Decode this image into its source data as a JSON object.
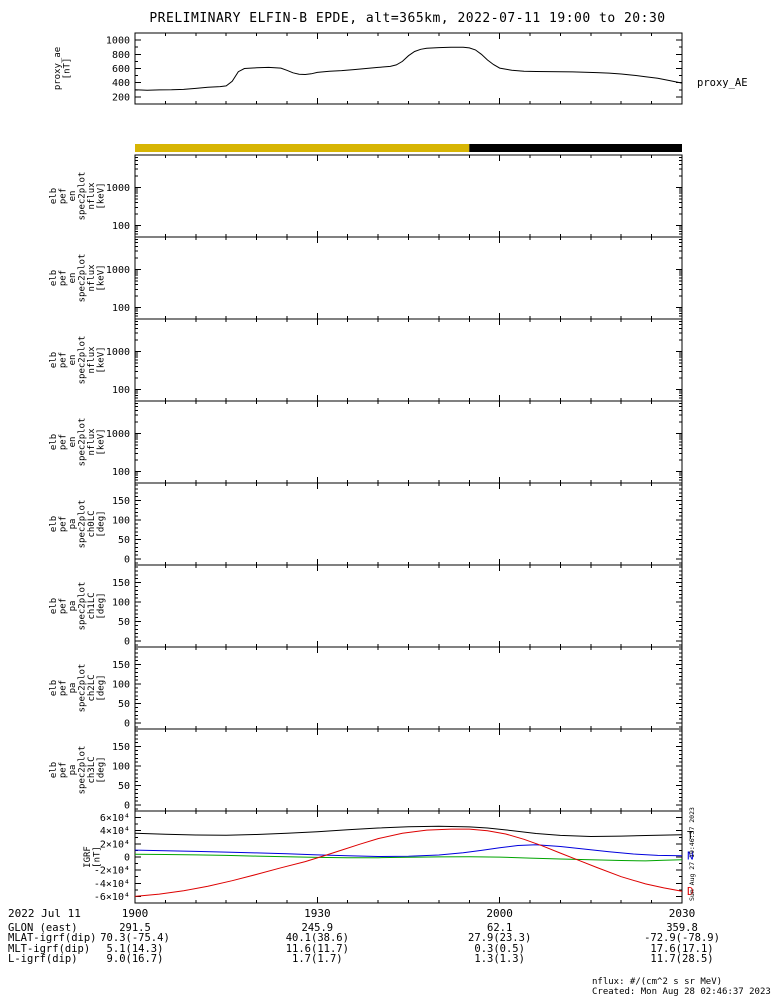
{
  "title": "PRELIMINARY ELFIN-B EPDE, alt=365km, 2022-07-11 19:00 to 20:30",
  "x_axis": {
    "tick_labels": [
      "1900",
      "1930",
      "2000",
      "2030"
    ],
    "tick_minutes": [
      0,
      30,
      60,
      90
    ],
    "minutes_range": [
      0,
      90
    ]
  },
  "footer": {
    "date_label": "2022 Jul 11",
    "rows": [
      {
        "label": "GLON (east)",
        "values": [
          "291.5",
          "245.9",
          "62.1",
          "359.8"
        ]
      },
      {
        "label": "MLAT-igrf(dip)",
        "values": [
          "70.3(-75.4)",
          "40.1(38.6)",
          "27.9(23.3)",
          "-72.9(-78.9)"
        ]
      },
      {
        "label": "MLT-igrf(dip)",
        "values": [
          "5.1(14.3)",
          "11.6(11.7)",
          "0.3(0.5)",
          "17.6(17.1)"
        ]
      },
      {
        "label": "L-igrf(dip)",
        "values": [
          "9.0(16.7)",
          "1.7(1.7)",
          "1.3(1.3)",
          "11.7(28.5)"
        ]
      }
    ],
    "nflux_note": "nflux: #/(cm^2 s sr MeV)",
    "created_note": "Created: Mon Aug 28 02:46:37 2023",
    "side_timestamp": "Sun Aug 27 19:46:37 2023"
  },
  "chart_data": [
    {
      "id": "proxy_ae",
      "type": "line",
      "yscale": "linear",
      "ylim": [
        100,
        1100
      ],
      "yticks": [
        {
          "v": 200,
          "label": "200"
        },
        {
          "v": 400,
          "label": "400"
        },
        {
          "v": 600,
          "label": "600"
        },
        {
          "v": 800,
          "label": "800"
        },
        {
          "v": 1000,
          "label": "1000"
        }
      ],
      "minor_step": 100,
      "ylabel_lines": [
        "proxy_ae",
        "[nT]"
      ],
      "right_label": "proxy_AE",
      "series": [
        {
          "name": "proxy_AE",
          "color": "#000000",
          "x": [
            0,
            2,
            4,
            6,
            8,
            10,
            12,
            14,
            15,
            16,
            17,
            18,
            20,
            22,
            24,
            25,
            26,
            27,
            28,
            29,
            30,
            32,
            34,
            36,
            38,
            40,
            42,
            43,
            44,
            45,
            46,
            47,
            48,
            50,
            52,
            54,
            55,
            56,
            57,
            58,
            59,
            60,
            62,
            64,
            66,
            68,
            70,
            72,
            74,
            76,
            78,
            80,
            82,
            84,
            86,
            88,
            90
          ],
          "y": [
            300,
            295,
            298,
            300,
            305,
            320,
            335,
            345,
            355,
            420,
            555,
            600,
            610,
            615,
            605,
            575,
            540,
            520,
            515,
            525,
            545,
            560,
            570,
            585,
            600,
            615,
            630,
            650,
            700,
            780,
            840,
            870,
            885,
            895,
            900,
            898,
            890,
            862,
            800,
            720,
            655,
            605,
            575,
            560,
            558,
            556,
            555,
            552,
            548,
            542,
            535,
            522,
            505,
            485,
            462,
            430,
            395
          ]
        }
      ]
    },
    {
      "id": "orbit_strip",
      "type": "strip",
      "segments": [
        {
          "color": "#d7b504",
          "t0": 0,
          "t1": 55
        },
        {
          "color": "#000000",
          "t0": 55,
          "t1": 90
        }
      ]
    },
    {
      "id": "en_ch0",
      "type": "empty",
      "yscale": "log",
      "ylim": [
        50,
        7000
      ],
      "yticks": [
        {
          "v": 100,
          "label": "100"
        },
        {
          "v": 1000,
          "label": "1000"
        }
      ],
      "ylabel_lines": [
        "elb",
        "pef",
        "en",
        "spec2plot",
        "nflux",
        "[keV]"
      ]
    },
    {
      "id": "en_ch1",
      "type": "empty",
      "yscale": "log",
      "ylim": [
        50,
        7000
      ],
      "yticks": [
        {
          "v": 100,
          "label": "100"
        },
        {
          "v": 1000,
          "label": "1000"
        }
      ],
      "ylabel_lines": [
        "elb",
        "pef",
        "en",
        "spec2plot",
        "nflux",
        "[keV]"
      ]
    },
    {
      "id": "en_ch2",
      "type": "empty",
      "yscale": "log",
      "ylim": [
        50,
        7000
      ],
      "yticks": [
        {
          "v": 100,
          "label": "100"
        },
        {
          "v": 1000,
          "label": "1000"
        }
      ],
      "ylabel_lines": [
        "elb",
        "pef",
        "en",
        "spec2plot",
        "nflux",
        "[keV]"
      ]
    },
    {
      "id": "en_ch3",
      "type": "empty",
      "yscale": "log",
      "ylim": [
        50,
        7000
      ],
      "yticks": [
        {
          "v": 100,
          "label": "100"
        },
        {
          "v": 1000,
          "label": "1000"
        }
      ],
      "ylabel_lines": [
        "elb",
        "pef",
        "en",
        "spec2plot",
        "nflux",
        "[keV]"
      ]
    },
    {
      "id": "pa_ch0",
      "type": "empty",
      "yscale": "linear",
      "ylim": [
        -15,
        195
      ],
      "minor_step": 10,
      "yticks": [
        {
          "v": 0,
          "label": "0"
        },
        {
          "v": 50,
          "label": "50"
        },
        {
          "v": 100,
          "label": "100"
        },
        {
          "v": 150,
          "label": "150"
        }
      ],
      "ylabel_lines": [
        "elb",
        "pef",
        "pa",
        "spec2plot",
        "ch0LC",
        "[deg]"
      ]
    },
    {
      "id": "pa_ch1",
      "type": "empty",
      "yscale": "linear",
      "ylim": [
        -15,
        195
      ],
      "minor_step": 10,
      "yticks": [
        {
          "v": 0,
          "label": "0"
        },
        {
          "v": 50,
          "label": "50"
        },
        {
          "v": 100,
          "label": "100"
        },
        {
          "v": 150,
          "label": "150"
        }
      ],
      "ylabel_lines": [
        "elb",
        "pef",
        "pa",
        "spec2plot",
        "ch1LC",
        "[deg]"
      ]
    },
    {
      "id": "pa_ch2",
      "type": "empty",
      "yscale": "linear",
      "ylim": [
        -15,
        195
      ],
      "minor_step": 10,
      "yticks": [
        {
          "v": 0,
          "label": "0"
        },
        {
          "v": 50,
          "label": "50"
        },
        {
          "v": 100,
          "label": "100"
        },
        {
          "v": 150,
          "label": "150"
        }
      ],
      "ylabel_lines": [
        "elb",
        "pef",
        "pa",
        "spec2plot",
        "ch2LC",
        "[deg]"
      ]
    },
    {
      "id": "pa_ch3",
      "type": "empty",
      "yscale": "linear",
      "ylim": [
        -15,
        195
      ],
      "minor_step": 10,
      "yticks": [
        {
          "v": 0,
          "label": "0"
        },
        {
          "v": 50,
          "label": "50"
        },
        {
          "v": 100,
          "label": "100"
        },
        {
          "v": 150,
          "label": "150"
        }
      ],
      "ylabel_lines": [
        "elb",
        "pef",
        "pa",
        "spec2plot",
        "ch3LC",
        "[deg]"
      ]
    },
    {
      "id": "igrf",
      "type": "line",
      "yscale": "linear",
      "ylim": [
        -70000,
        70000
      ],
      "minor_step": 10000,
      "yticks": [
        {
          "v": -60000,
          "label": "-6×10⁴"
        },
        {
          "v": -40000,
          "label": "-4×10⁴"
        },
        {
          "v": -20000,
          "label": "-2×10⁴"
        },
        {
          "v": 0,
          "label": "0"
        },
        {
          "v": 20000,
          "label": "2×10⁴"
        },
        {
          "v": 40000,
          "label": "4×10⁴"
        },
        {
          "v": 60000,
          "label": "6×10⁴"
        }
      ],
      "ylabel_lines": [
        "IGRF",
        "[nT]"
      ],
      "series": [
        {
          "name": "T",
          "color": "#000000",
          "x": [
            0,
            5,
            10,
            15,
            20,
            25,
            30,
            35,
            40,
            45,
            50,
            55,
            58,
            62,
            66,
            70,
            75,
            80,
            85,
            90
          ],
          "y": [
            36000,
            34500,
            33500,
            33200,
            34200,
            36000,
            38500,
            41500,
            44200,
            46000,
            46800,
            45800,
            44200,
            40200,
            35800,
            32800,
            31200,
            31800,
            32800,
            33800
          ]
        },
        {
          "name": "N",
          "color": "#0000dd",
          "x": [
            0,
            5,
            10,
            15,
            20,
            25,
            30,
            35,
            40,
            45,
            50,
            54,
            57,
            60,
            63,
            66,
            70,
            74,
            78,
            82,
            86,
            90
          ],
          "y": [
            10500,
            9500,
            8500,
            7500,
            6200,
            4800,
            3200,
            1800,
            800,
            1000,
            3000,
            6500,
            10000,
            14000,
            17500,
            18500,
            16000,
            12000,
            8000,
            4500,
            2500,
            2000
          ]
        },
        {
          "name": "E",
          "color": "#00a400",
          "x": [
            0,
            5,
            10,
            15,
            20,
            25,
            30,
            35,
            40,
            45,
            50,
            55,
            60,
            65,
            70,
            75,
            80,
            84,
            87,
            90
          ],
          "y": [
            4200,
            3800,
            3200,
            2400,
            1400,
            400,
            -600,
            -1200,
            -1000,
            -400,
            200,
            400,
            -200,
            -1600,
            -3000,
            -4200,
            -5400,
            -6000,
            -5000,
            -4200
          ]
        },
        {
          "name": "D",
          "color": "#dd0000",
          "x": [
            0,
            4,
            8,
            12,
            16,
            20,
            24,
            28,
            31,
            34,
            37,
            40,
            44,
            48,
            52,
            55,
            58,
            61,
            64,
            67,
            70,
            73,
            76,
            80,
            84,
            87,
            90
          ],
          "y": [
            -60000,
            -56500,
            -51500,
            -44500,
            -36000,
            -26500,
            -16500,
            -7000,
            1500,
            10500,
            19500,
            28000,
            36000,
            41000,
            42500,
            42500,
            40000,
            35000,
            27000,
            17000,
            6000,
            -5000,
            -16000,
            -30000,
            -41000,
            -47000,
            -52000
          ]
        }
      ],
      "right_series_labels": [
        {
          "text": "T",
          "series": "T",
          "color": "#000000"
        },
        {
          "text": "N",
          "series": "N",
          "color": "#0000dd"
        },
        {
          "text": "D",
          "series": "D",
          "color": "#dd0000"
        }
      ]
    }
  ]
}
